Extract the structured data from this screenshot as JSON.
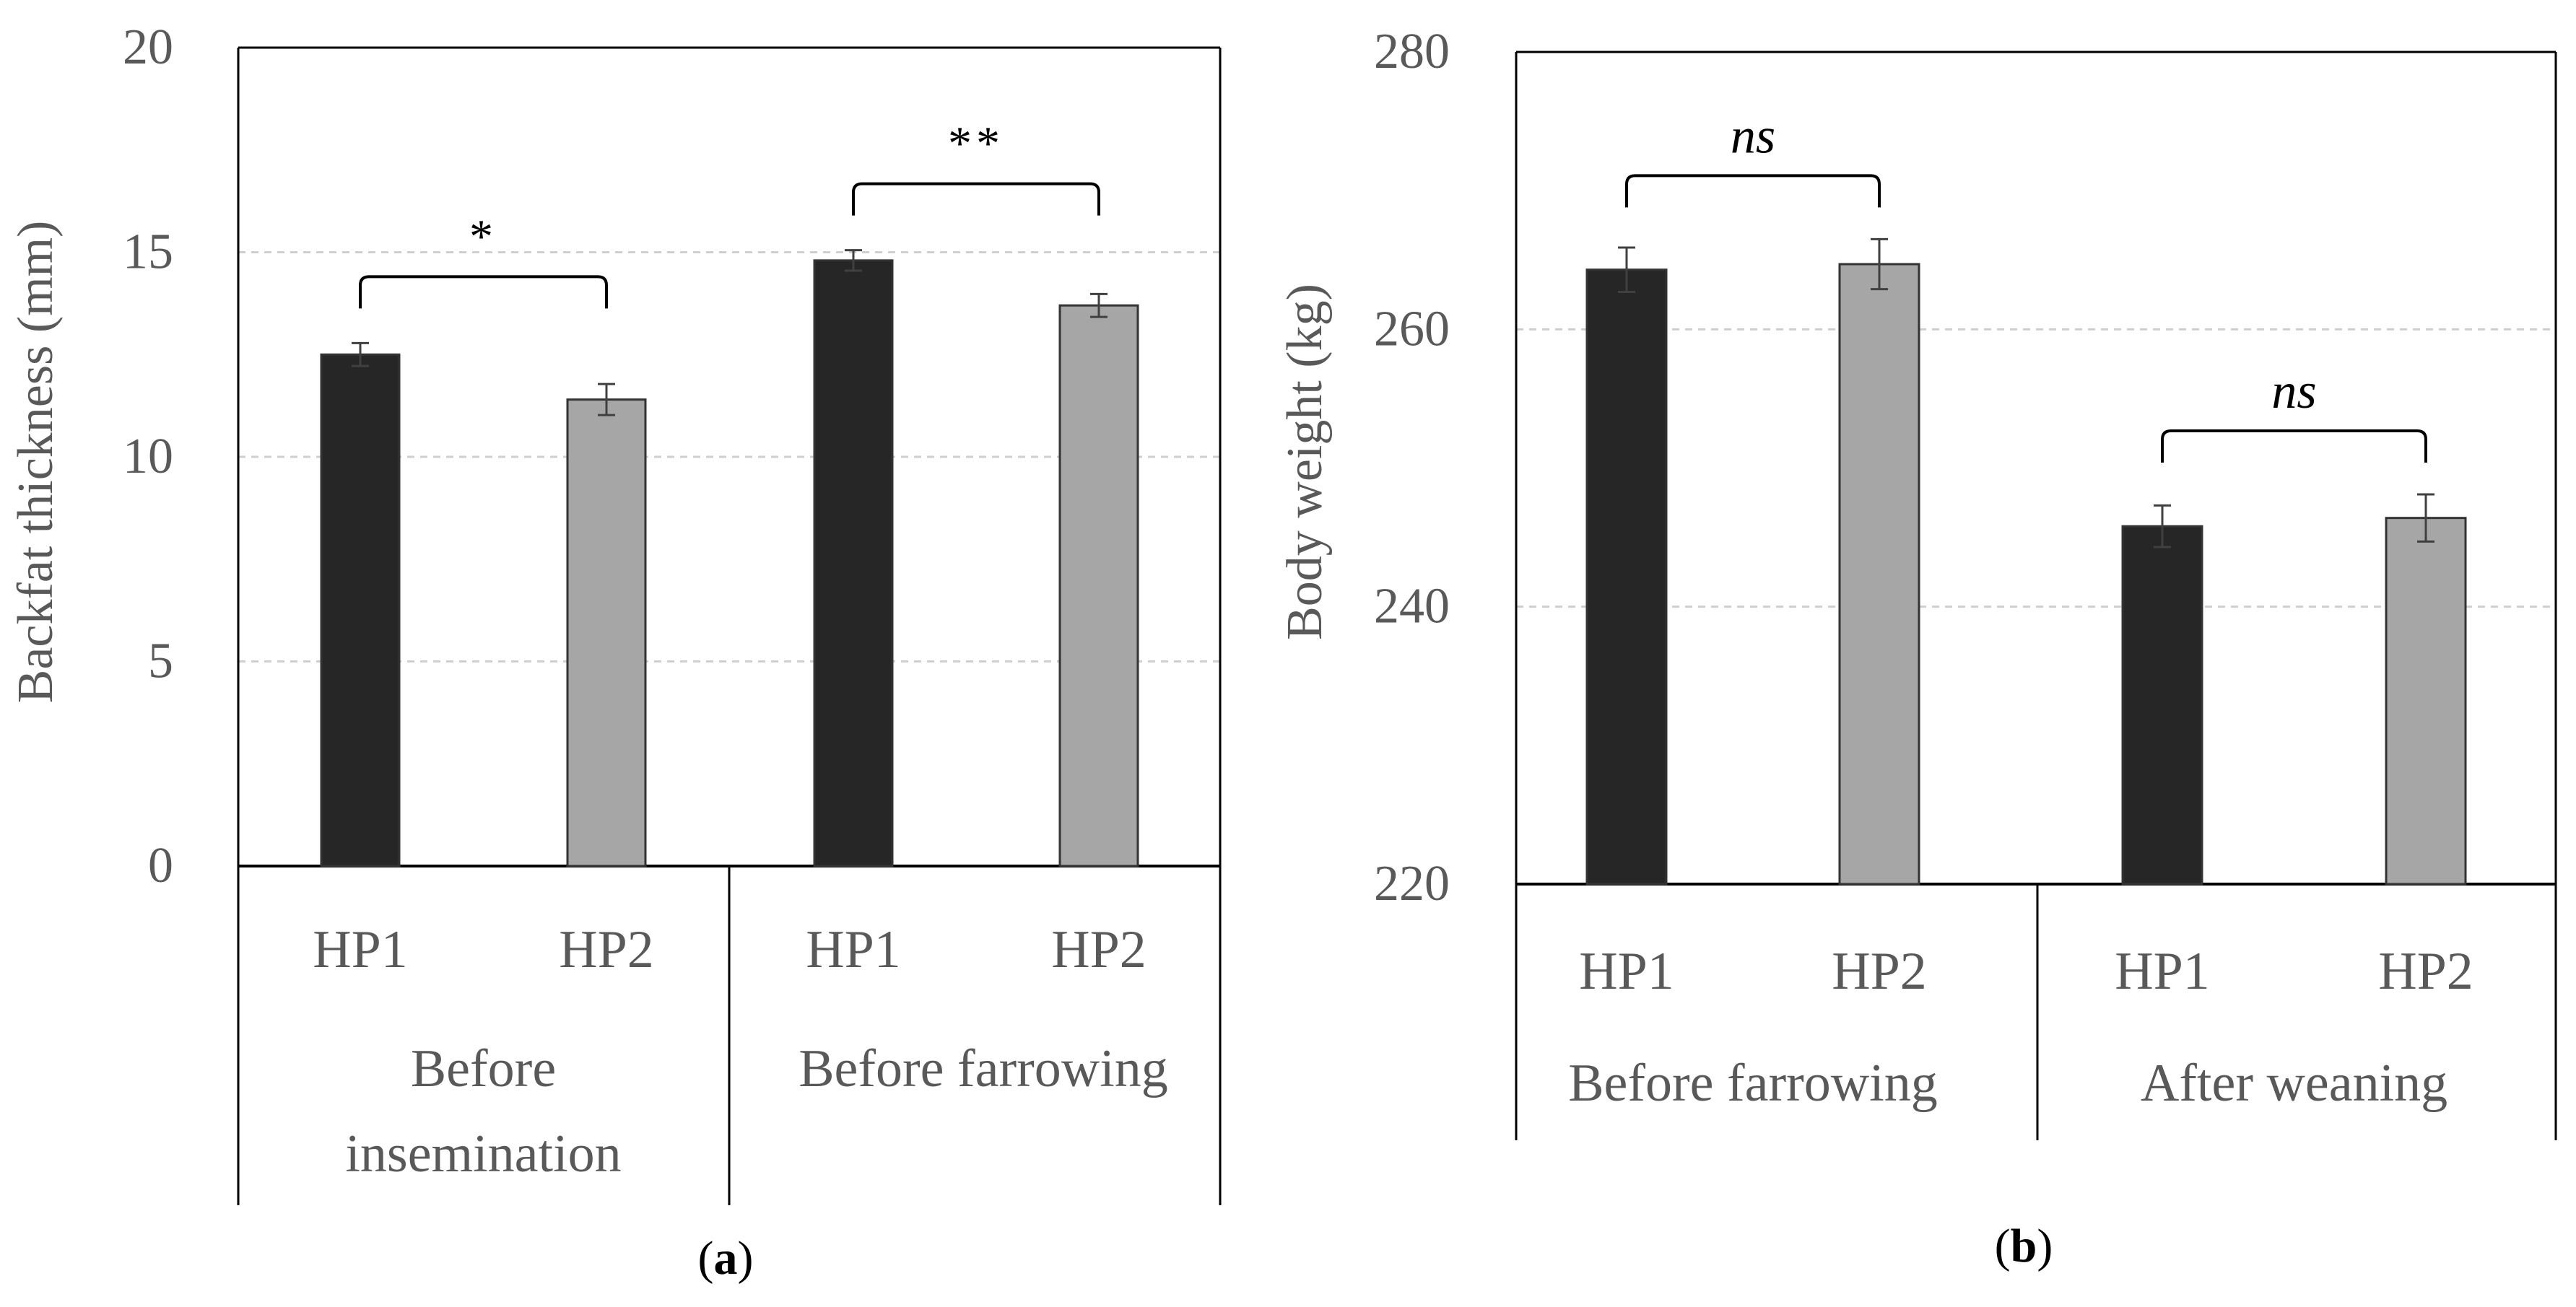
{
  "figure": {
    "panel_a_label": {
      "paren_open": "(",
      "letter": "a",
      "paren_close": ")"
    },
    "panel_b_label": {
      "paren_open": "(",
      "letter": "b",
      "paren_close": ")"
    }
  },
  "colors": {
    "hp1": "#262626",
    "hp2": "#a6a6a6",
    "axis": "#000000",
    "grid": "#cfcfcf",
    "text": "#595959",
    "error_bar": "#404040"
  },
  "chart_data": [
    {
      "type": "bar",
      "panel": "a",
      "ylabel": "Backfat thickness (mm)",
      "xlabel": "",
      "ylim": [
        0,
        20
      ],
      "yticks": [
        0,
        5,
        10,
        15,
        20
      ],
      "grid": true,
      "series_names": [
        "HP1",
        "HP2"
      ],
      "groups": [
        {
          "label_lines": [
            "Before",
            "insemination"
          ],
          "bars": [
            {
              "name": "HP1",
              "value": 12.5,
              "error": 0.28
            },
            {
              "name": "HP2",
              "value": 11.4,
              "error": 0.38
            }
          ],
          "significance": "*"
        },
        {
          "label_lines": [
            "Before farrowing"
          ],
          "bars": [
            {
              "name": "HP1",
              "value": 14.8,
              "error": 0.25
            },
            {
              "name": "HP2",
              "value": 13.7,
              "error": 0.28
            }
          ],
          "significance": "**"
        }
      ]
    },
    {
      "type": "bar",
      "panel": "b",
      "ylabel": "Body weight (kg)",
      "xlabel": "",
      "ylim": [
        220,
        280
      ],
      "yticks": [
        220,
        240,
        260,
        280
      ],
      "grid": true,
      "series_names": [
        "HP1",
        "HP2"
      ],
      "groups": [
        {
          "label_lines": [
            "Before farrowing"
          ],
          "bars": [
            {
              "name": "HP1",
              "value": 264.3,
              "error": 1.6
            },
            {
              "name": "HP2",
              "value": 264.7,
              "error": 1.8
            }
          ],
          "significance": "ns"
        },
        {
          "label_lines": [
            "After weaning"
          ],
          "bars": [
            {
              "name": "HP1",
              "value": 245.8,
              "error": 1.5
            },
            {
              "name": "HP2",
              "value": 246.4,
              "error": 1.7
            }
          ],
          "significance": "ns"
        }
      ]
    }
  ]
}
